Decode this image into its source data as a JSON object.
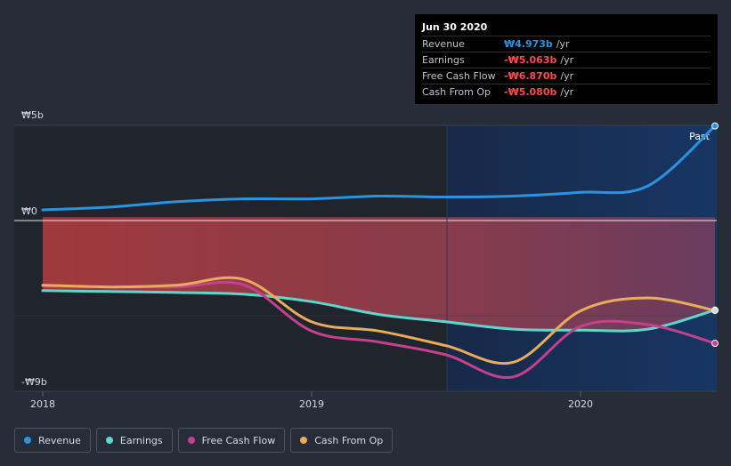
{
  "chart_data": {
    "type": "line",
    "y_axis": {
      "top_label": "₩5b",
      "zero_label": "₩0",
      "bottom_label": "-₩9b",
      "ylim": [
        -9,
        5
      ]
    },
    "x_axis": {
      "ticks": [
        "2018",
        "2019",
        "2020"
      ],
      "xlim": [
        2017.95,
        2020.5
      ]
    },
    "past_label": "Past",
    "series": [
      {
        "name": "Revenue",
        "color": "#2b93e0",
        "points": [
          [
            2018.0,
            0.4
          ],
          [
            2018.25,
            0.55
          ],
          [
            2018.5,
            0.85
          ],
          [
            2018.75,
            1.0
          ],
          [
            2019.0,
            1.0
          ],
          [
            2019.25,
            1.15
          ],
          [
            2019.5,
            1.1
          ],
          [
            2019.75,
            1.15
          ],
          [
            2020.0,
            1.35
          ],
          [
            2020.25,
            1.7
          ],
          [
            2020.5,
            4.97
          ]
        ]
      },
      {
        "name": "Earnings",
        "color": "#5fd6cb",
        "points": [
          [
            2018.0,
            -4.0
          ],
          [
            2018.25,
            -4.05
          ],
          [
            2018.5,
            -4.1
          ],
          [
            2018.75,
            -4.2
          ],
          [
            2019.0,
            -4.6
          ],
          [
            2019.25,
            -5.3
          ],
          [
            2019.5,
            -5.7
          ],
          [
            2019.75,
            -6.1
          ],
          [
            2020.0,
            -6.15
          ],
          [
            2020.25,
            -6.1
          ],
          [
            2020.5,
            -5.06
          ]
        ]
      },
      {
        "name": "Free Cash Flow",
        "color": "#c4418c",
        "points": [
          [
            2018.0,
            -3.75
          ],
          [
            2018.25,
            -3.8
          ],
          [
            2018.5,
            -3.8
          ],
          [
            2018.75,
            -3.7
          ],
          [
            2019.0,
            -6.2
          ],
          [
            2019.25,
            -6.8
          ],
          [
            2019.5,
            -7.5
          ],
          [
            2019.75,
            -8.7
          ],
          [
            2020.0,
            -5.95
          ],
          [
            2020.25,
            -5.85
          ],
          [
            2020.5,
            -6.87
          ]
        ]
      },
      {
        "name": "Cash From Op",
        "color": "#e8ac5a",
        "points": [
          [
            2018.0,
            -3.7
          ],
          [
            2018.25,
            -3.8
          ],
          [
            2018.5,
            -3.7
          ],
          [
            2018.75,
            -3.4
          ],
          [
            2019.0,
            -5.7
          ],
          [
            2019.25,
            -6.2
          ],
          [
            2019.5,
            -7.0
          ],
          [
            2019.75,
            -7.9
          ],
          [
            2020.0,
            -5.1
          ],
          [
            2020.25,
            -4.4
          ],
          [
            2020.5,
            -5.08
          ]
        ]
      }
    ]
  },
  "tooltip": {
    "date": "Jun 30 2020",
    "rows": [
      {
        "label": "Revenue",
        "value": "₩4.973b",
        "unit": "/yr",
        "color": "#2b93e0"
      },
      {
        "label": "Earnings",
        "value": "-₩5.063b",
        "unit": "/yr",
        "color": "#ff4c4c"
      },
      {
        "label": "Free Cash Flow",
        "value": "-₩6.870b",
        "unit": "/yr",
        "color": "#ff4c4c"
      },
      {
        "label": "Cash From Op",
        "value": "-₩5.080b",
        "unit": "/yr",
        "color": "#ff4c4c"
      }
    ]
  },
  "legend": [
    {
      "label": "Revenue",
      "color": "#2b93e0"
    },
    {
      "label": "Earnings",
      "color": "#5fd6cb"
    },
    {
      "label": "Free Cash Flow",
      "color": "#c4418c"
    },
    {
      "label": "Cash From Op",
      "color": "#e8ac5a"
    }
  ]
}
